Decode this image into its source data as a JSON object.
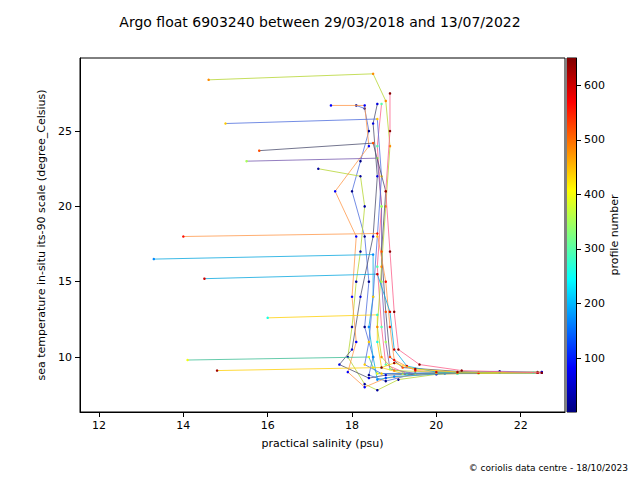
{
  "chart_data": {
    "type": "line",
    "title": "Argo float 6903240 between 29/03/2018 and 13/07/2022",
    "x_label": "practical salinity (psu)",
    "y_label": "sea temperature in-situ its-90 scale (degree_Celsius)",
    "footer": "© coriolis data centre - 18/10/2023",
    "xlim": [
      11.55,
      23.05
    ],
    "xticks": [
      12,
      14,
      16,
      18,
      20,
      22
    ],
    "ylim": [
      6.35,
      29.85
    ],
    "yticks": [
      10,
      15,
      20,
      25
    ],
    "grid": false,
    "marker": "circle",
    "colorbar": {
      "label": "profile number",
      "range": [
        1,
        650
      ],
      "ticks": [
        100,
        200,
        300,
        400,
        500,
        600
      ]
    },
    "profiles": [
      {
        "profile_number": 5,
        "points": [
          [
            18.1,
            26.7
          ],
          [
            18.3,
            26.5
          ],
          [
            18.4,
            25
          ],
          [
            18.2,
            23
          ],
          [
            18.0,
            21
          ],
          [
            18.3,
            18
          ],
          [
            18.4,
            15
          ],
          [
            18.3,
            12
          ],
          [
            18.5,
            10
          ],
          [
            18.4,
            8.8
          ],
          [
            18.8,
            8.4
          ],
          [
            19.5,
            8.9
          ],
          [
            20.5,
            9.0
          ],
          [
            21.5,
            9.05
          ],
          [
            22.4,
            9.0
          ]
        ]
      },
      {
        "profile_number": 20,
        "points": [
          [
            17.2,
            22.5
          ],
          [
            18.2,
            22.0
          ],
          [
            18.3,
            20
          ],
          [
            18.2,
            17
          ],
          [
            18.1,
            15
          ],
          [
            18.0,
            12
          ],
          [
            17.9,
            10
          ],
          [
            18.3,
            8.2
          ],
          [
            18.6,
            7.8
          ],
          [
            19.1,
            8.5
          ],
          [
            20,
            8.85
          ],
          [
            21,
            8.95
          ],
          [
            22.5,
            9.0
          ]
        ]
      },
      {
        "profile_number": 60,
        "points": [
          [
            18.6,
            26.8
          ],
          [
            18.5,
            25.5
          ],
          [
            18.6,
            22
          ],
          [
            18.5,
            18
          ],
          [
            18.2,
            14
          ],
          [
            18.0,
            10.5
          ],
          [
            17.7,
            9.5
          ],
          [
            18.4,
            8.6
          ],
          [
            18.8,
            8.8
          ],
          [
            20,
            8.9
          ],
          [
            22.5,
            8.95
          ]
        ]
      },
      {
        "profile_number": 80,
        "points": [
          [
            17.5,
            26.7
          ],
          [
            18.3,
            26.7
          ],
          [
            18.4,
            24
          ],
          [
            17.6,
            21
          ],
          [
            18.1,
            18
          ],
          [
            18.0,
            14
          ],
          [
            18.1,
            11
          ],
          [
            17.9,
            9
          ],
          [
            18.3,
            8.0
          ],
          [
            18.8,
            8.6
          ],
          [
            20,
            8.9
          ],
          [
            22.5,
            9.0
          ]
        ]
      },
      {
        "profile_number": 170,
        "points": [
          [
            13.3,
            16.5
          ],
          [
            18.5,
            16.8
          ],
          [
            18.5,
            14
          ],
          [
            18.4,
            12
          ],
          [
            18.5,
            10
          ],
          [
            18.6,
            8.5
          ],
          [
            19.0,
            8.7
          ],
          [
            20.2,
            8.9
          ],
          [
            21.5,
            8.95
          ],
          [
            22.4,
            8.95
          ]
        ]
      },
      {
        "profile_number": 260,
        "points": [
          [
            16.0,
            12.6
          ],
          [
            18.6,
            12.8
          ],
          [
            18.6,
            11
          ],
          [
            18.7,
            9.3
          ],
          [
            19.2,
            8.9
          ],
          [
            20.5,
            8.9
          ],
          [
            22.3,
            8.95
          ]
        ]
      },
      {
        "profile_number": 300,
        "points": [
          [
            18.7,
            26.8
          ],
          [
            18.6,
            24
          ],
          [
            18.7,
            20
          ],
          [
            18.6,
            16
          ],
          [
            18.7,
            12
          ],
          [
            18.8,
            9.5
          ],
          [
            19.3,
            8.9
          ],
          [
            20.5,
            8.9
          ]
        ]
      },
      {
        "profile_number": 350,
        "points": [
          [
            15.5,
            23
          ],
          [
            18.6,
            23.2
          ],
          [
            18.7,
            20
          ],
          [
            18.7,
            15
          ],
          [
            18.8,
            11
          ],
          [
            18.9,
            9.2
          ],
          [
            19.5,
            8.9
          ],
          [
            21,
            8.9
          ]
        ]
      },
      {
        "profile_number": 400,
        "points": [
          [
            14.1,
            9.8
          ],
          [
            18.4,
            10.0
          ],
          [
            18.5,
            9.3
          ],
          [
            18.6,
            8.9
          ],
          [
            19.2,
            8.9
          ],
          [
            21,
            8.95
          ]
        ]
      },
      {
        "profile_number": 440,
        "points": [
          [
            15.0,
            25.5
          ],
          [
            18.6,
            25.8
          ],
          [
            18.7,
            22
          ],
          [
            18.6,
            18
          ],
          [
            18.5,
            14
          ],
          [
            18.4,
            11
          ],
          [
            18.3,
            9.5
          ],
          [
            18.7,
            8.9
          ],
          [
            20,
            8.95
          ]
        ]
      },
      {
        "profile_number": 480,
        "points": [
          [
            14.6,
            28.4
          ],
          [
            18.5,
            28.8
          ],
          [
            18.8,
            27
          ],
          [
            18.9,
            24
          ],
          [
            18.8,
            20
          ],
          [
            18.7,
            16
          ],
          [
            18.6,
            12
          ],
          [
            18.7,
            10
          ],
          [
            19.0,
            9.1
          ],
          [
            20.5,
            8.95
          ],
          [
            22.4,
            8.95
          ]
        ]
      },
      {
        "profile_number": 520,
        "points": [
          [
            15.8,
            23.7
          ],
          [
            18.5,
            24.2
          ],
          [
            18.8,
            21
          ],
          [
            18.7,
            17
          ],
          [
            18.8,
            13
          ],
          [
            18.9,
            10
          ],
          [
            19.2,
            9.3
          ],
          [
            21,
            8.95
          ]
        ]
      },
      {
        "profile_number": 560,
        "points": [
          [
            14.0,
            18.0
          ],
          [
            18.6,
            18.2
          ],
          [
            18.8,
            15
          ],
          [
            18.9,
            12
          ],
          [
            19.0,
            9.8
          ],
          [
            19.5,
            9.1
          ],
          [
            21,
            8.95
          ]
        ]
      },
      {
        "profile_number": 600,
        "points": [
          [
            14.5,
            15.2
          ],
          [
            18.6,
            15.5
          ],
          [
            18.9,
            13
          ],
          [
            19.0,
            10.5
          ],
          [
            19.3,
            9.4
          ],
          [
            20,
            9.0
          ],
          [
            22.4,
            8.95
          ]
        ]
      },
      {
        "profile_number": 630,
        "points": [
          [
            14.8,
            9.1
          ],
          [
            18.7,
            9.3
          ],
          [
            19.0,
            9.6
          ],
          [
            19.5,
            9.2
          ],
          [
            20.5,
            9.0
          ],
          [
            22.4,
            8.95
          ]
        ]
      },
      {
        "profile_number": 645,
        "points": [
          [
            18.9,
            27.5
          ],
          [
            18.9,
            25
          ],
          [
            18.8,
            21
          ],
          [
            18.9,
            17
          ],
          [
            19.0,
            13
          ],
          [
            19.1,
            10.5
          ],
          [
            19.6,
            9.5
          ],
          [
            20.6,
            9.1
          ],
          [
            22.5,
            8.95
          ]
        ]
      }
    ]
  }
}
